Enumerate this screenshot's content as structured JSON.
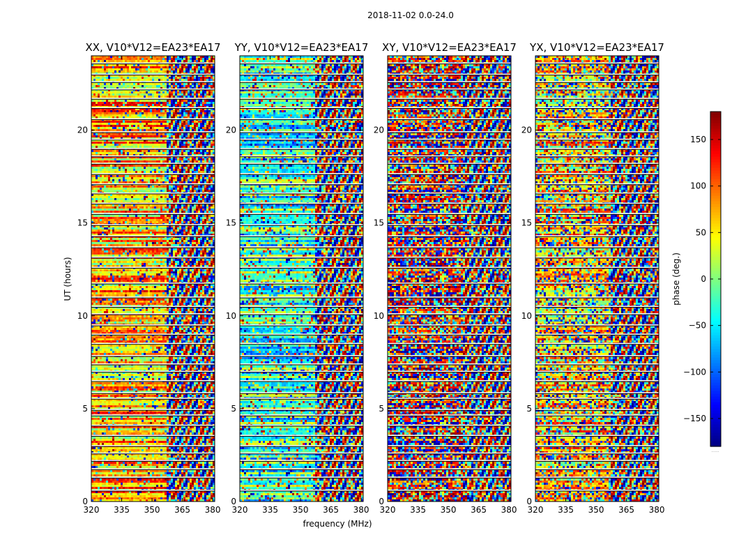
{
  "figure": {
    "suptitle": "2018-11-02 0.0-24.0",
    "xlabel": "frequency (MHz)",
    "ylabel": "UT (hours)",
    "colorbar_label": "phase (deg.)",
    "colorbar_bottom_note": "......"
  },
  "chart_data": {
    "type": "heatmap",
    "title": "2018-11-02 0.0-24.0",
    "xlabel": "frequency (MHz)",
    "ylabel": "UT (hours)",
    "xlim": [
      320,
      381
    ],
    "ylim": [
      0,
      24
    ],
    "x_ticks": [
      320,
      335,
      350,
      365,
      380
    ],
    "y_ticks": [
      0,
      5,
      10,
      15,
      20
    ],
    "colorbar": {
      "label": "phase (deg.)",
      "range": [
        -180,
        180
      ],
      "ticks": [
        -150,
        -100,
        -50,
        0,
        50,
        100,
        150
      ],
      "colormap": "jet",
      "colors": [
        "#00007f",
        "#0000ff",
        "#00ffff",
        "#7fff7f",
        "#ffff00",
        "#ff7f00",
        "#ff0000",
        "#7f0000"
      ]
    },
    "panels": [
      {
        "title": "XX, V10*V12=EA23*EA17",
        "polarization": "XX",
        "dominant_phase_deg": 70,
        "coherence": 0.8
      },
      {
        "title": "YY, V10*V12=EA23*EA17",
        "polarization": "YY",
        "dominant_phase_deg": -25,
        "coherence": 0.75
      },
      {
        "title": "XY, V10*V12=EA23*EA17",
        "polarization": "XY",
        "dominant_phase_deg": 150,
        "coherence": 0.35
      },
      {
        "title": "YX, V10*V12=EA23*EA17",
        "polarization": "YX",
        "dominant_phase_deg": 60,
        "coherence": 0.45
      }
    ],
    "gaps_ut": [
      0.6,
      1.3,
      1.75,
      2.2,
      2.6,
      3.0,
      3.55,
      4.1,
      4.65,
      4.95,
      5.55,
      5.85,
      6.5,
      7.0,
      7.4,
      7.85,
      8.5,
      9.0,
      9.5,
      10.1,
      10.5,
      11.0,
      11.75,
      12.6,
      13.15,
      13.7,
      14.3,
      14.9,
      15.5,
      16.05,
      16.6,
      17.1,
      17.65,
      18.2,
      18.6,
      19.0,
      19.5,
      19.9,
      20.6,
      21.2,
      21.7,
      22.2,
      22.6,
      23.0,
      23.6
    ]
  }
}
